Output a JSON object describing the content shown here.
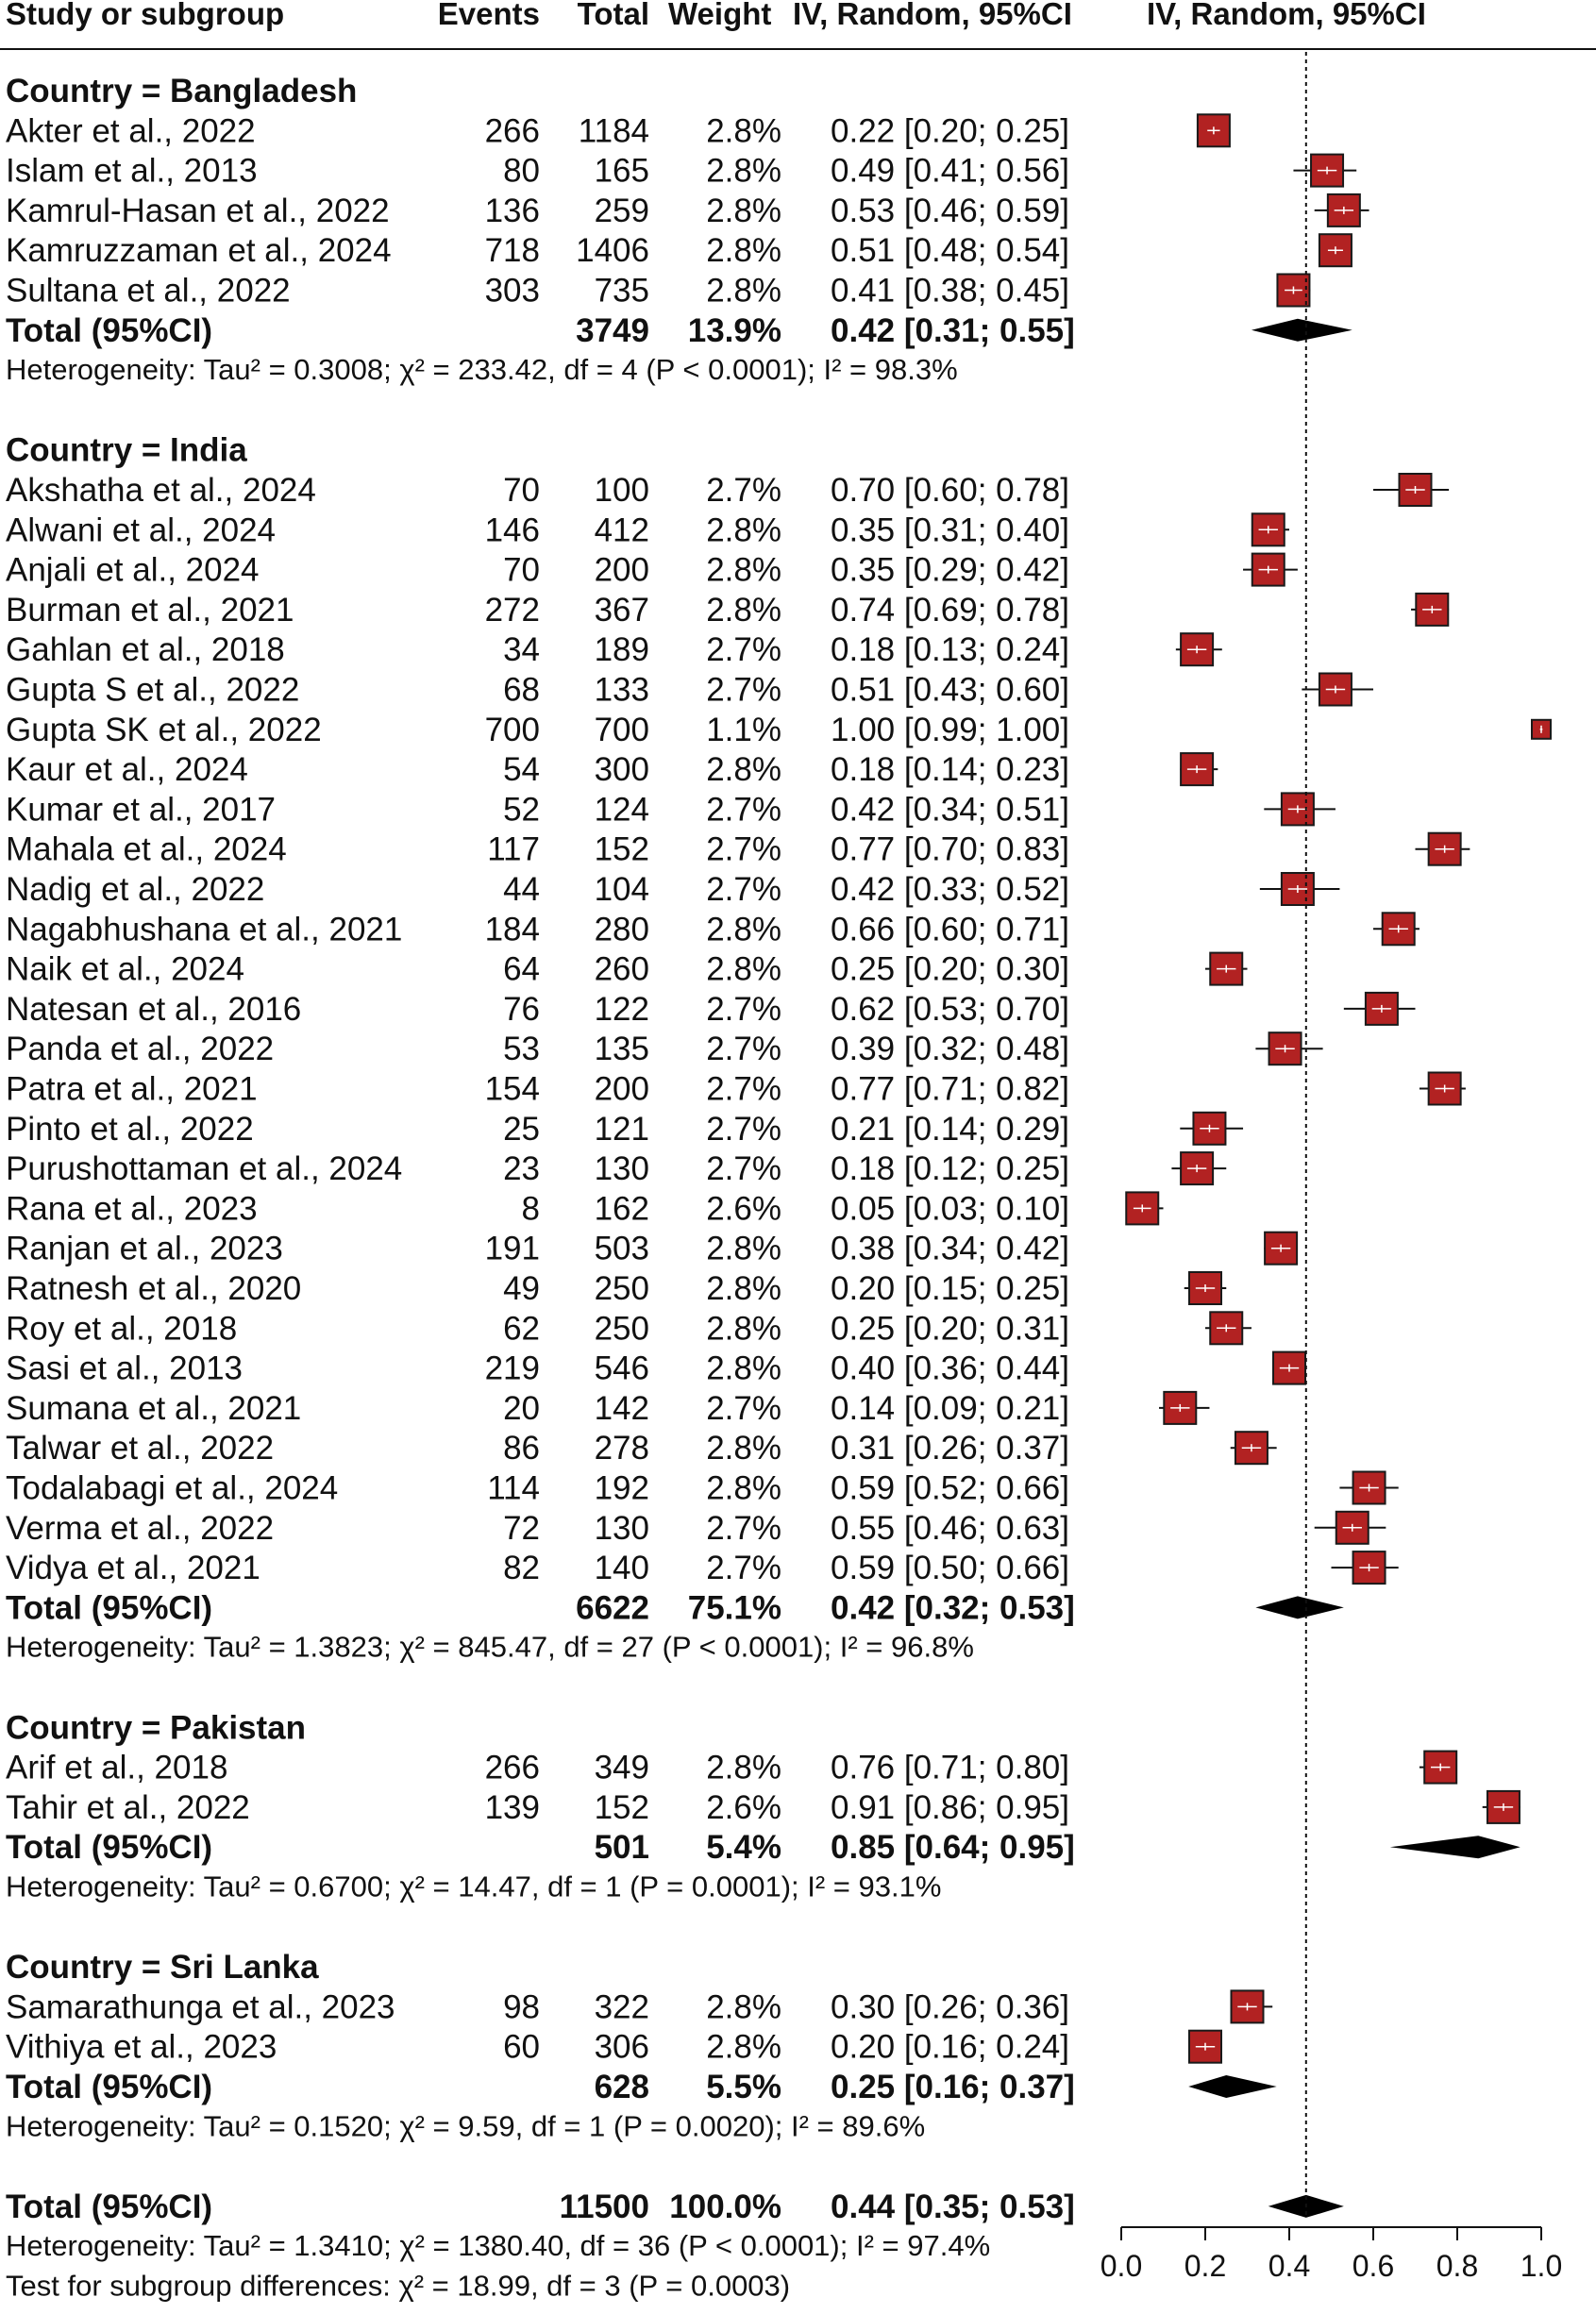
{
  "header": {
    "col_study": "Study or subgroup",
    "col_events": "Events",
    "col_total": "Total",
    "col_weight": "Weight",
    "col_ci": "IV, Random, 95%CI",
    "col_plot": "IV, Random, 95%CI"
  },
  "chart_data": {
    "type": "forest",
    "xlim": [
      0.0,
      1.0
    ],
    "x_ticks": [
      "0.0",
      "0.2",
      "0.4",
      "0.6",
      "0.8",
      "1.0"
    ],
    "reference_line": 0.44,
    "groups": [
      {
        "label": "Country = Bangladesh",
        "studies": [
          {
            "study": "Akter et al., 2022",
            "events": "266",
            "total": "1184",
            "weight": "2.8%",
            "ci": "0.22 [0.20; 0.25]",
            "est": 0.22,
            "lo": 0.2,
            "hi": 0.25
          },
          {
            "study": "Islam et al., 2013",
            "events": "80",
            "total": "165",
            "weight": "2.8%",
            "ci": "0.49 [0.41; 0.56]",
            "est": 0.49,
            "lo": 0.41,
            "hi": 0.56
          },
          {
            "study": "Kamrul-Hasan et al., 2022",
            "events": "136",
            "total": "259",
            "weight": "2.8%",
            "ci": "0.53 [0.46; 0.59]",
            "est": 0.53,
            "lo": 0.46,
            "hi": 0.59
          },
          {
            "study": "Kamruzzaman et al., 2024",
            "events": "718",
            "total": "1406",
            "weight": "2.8%",
            "ci": "0.51 [0.48; 0.54]",
            "est": 0.51,
            "lo": 0.48,
            "hi": 0.54
          },
          {
            "study": "Sultana et al., 2022",
            "events": "303",
            "total": "735",
            "weight": "2.8%",
            "ci": "0.41 [0.38; 0.45]",
            "est": 0.41,
            "lo": 0.38,
            "hi": 0.45
          }
        ],
        "total": {
          "label": "Total (95%CI)",
          "total": "3749",
          "weight": "13.9%",
          "ci": "0.42 [0.31; 0.55]",
          "est": 0.42,
          "lo": 0.31,
          "hi": 0.55
        },
        "heterogeneity": "Heterogeneity: Tau² = 0.3008; χ² = 233.42, df = 4 (P < 0.0001); I² = 98.3%"
      },
      {
        "label": "Country = India",
        "studies": [
          {
            "study": "Akshatha et al., 2024",
            "events": "70",
            "total": "100",
            "weight": "2.7%",
            "ci": "0.70 [0.60; 0.78]",
            "est": 0.7,
            "lo": 0.6,
            "hi": 0.78
          },
          {
            "study": "Alwani et al., 2024",
            "events": "146",
            "total": "412",
            "weight": "2.8%",
            "ci": "0.35 [0.31; 0.40]",
            "est": 0.35,
            "lo": 0.31,
            "hi": 0.4
          },
          {
            "study": "Anjali et al., 2024",
            "events": "70",
            "total": "200",
            "weight": "2.8%",
            "ci": "0.35 [0.29; 0.42]",
            "est": 0.35,
            "lo": 0.29,
            "hi": 0.42
          },
          {
            "study": "Burman et al., 2021",
            "events": "272",
            "total": "367",
            "weight": "2.8%",
            "ci": "0.74 [0.69; 0.78]",
            "est": 0.74,
            "lo": 0.69,
            "hi": 0.78
          },
          {
            "study": "Gahlan et al., 2018",
            "events": "34",
            "total": "189",
            "weight": "2.7%",
            "ci": "0.18 [0.13; 0.24]",
            "est": 0.18,
            "lo": 0.13,
            "hi": 0.24
          },
          {
            "study": "Gupta S et al., 2022",
            "events": "68",
            "total": "133",
            "weight": "2.7%",
            "ci": "0.51 [0.43; 0.60]",
            "est": 0.51,
            "lo": 0.43,
            "hi": 0.6
          },
          {
            "study": "Gupta SK et al., 2022",
            "events": "700",
            "total": "700",
            "weight": "1.1%",
            "ci": "1.00 [0.99; 1.00]",
            "est": 1.0,
            "lo": 0.99,
            "hi": 1.0
          },
          {
            "study": "Kaur et al., 2024",
            "events": "54",
            "total": "300",
            "weight": "2.8%",
            "ci": "0.18 [0.14; 0.23]",
            "est": 0.18,
            "lo": 0.14,
            "hi": 0.23
          },
          {
            "study": "Kumar et al., 2017",
            "events": "52",
            "total": "124",
            "weight": "2.7%",
            "ci": "0.42 [0.34; 0.51]",
            "est": 0.42,
            "lo": 0.34,
            "hi": 0.51
          },
          {
            "study": "Mahala et al., 2024",
            "events": "117",
            "total": "152",
            "weight": "2.7%",
            "ci": "0.77 [0.70; 0.83]",
            "est": 0.77,
            "lo": 0.7,
            "hi": 0.83
          },
          {
            "study": "Nadig et al., 2022",
            "events": "44",
            "total": "104",
            "weight": "2.7%",
            "ci": "0.42 [0.33; 0.52]",
            "est": 0.42,
            "lo": 0.33,
            "hi": 0.52
          },
          {
            "study": "Nagabhushana et al., 2021",
            "events": "184",
            "total": "280",
            "weight": "2.8%",
            "ci": "0.66 [0.60; 0.71]",
            "est": 0.66,
            "lo": 0.6,
            "hi": 0.71
          },
          {
            "study": "Naik et al., 2024",
            "events": "64",
            "total": "260",
            "weight": "2.8%",
            "ci": "0.25 [0.20; 0.30]",
            "est": 0.25,
            "lo": 0.2,
            "hi": 0.3
          },
          {
            "study": "Natesan et al., 2016",
            "events": "76",
            "total": "122",
            "weight": "2.7%",
            "ci": "0.62 [0.53; 0.70]",
            "est": 0.62,
            "lo": 0.53,
            "hi": 0.7
          },
          {
            "study": "Panda et al., 2022",
            "events": "53",
            "total": "135",
            "weight": "2.7%",
            "ci": "0.39 [0.32; 0.48]",
            "est": 0.39,
            "lo": 0.32,
            "hi": 0.48
          },
          {
            "study": "Patra et al., 2021",
            "events": "154",
            "total": "200",
            "weight": "2.7%",
            "ci": "0.77 [0.71; 0.82]",
            "est": 0.77,
            "lo": 0.71,
            "hi": 0.82
          },
          {
            "study": "Pinto et al., 2022",
            "events": "25",
            "total": "121",
            "weight": "2.7%",
            "ci": "0.21 [0.14; 0.29]",
            "est": 0.21,
            "lo": 0.14,
            "hi": 0.29
          },
          {
            "study": "Purushottaman et al., 2024",
            "events": "23",
            "total": "130",
            "weight": "2.7%",
            "ci": "0.18 [0.12; 0.25]",
            "est": 0.18,
            "lo": 0.12,
            "hi": 0.25
          },
          {
            "study": "Rana et al., 2023",
            "events": "8",
            "total": "162",
            "weight": "2.6%",
            "ci": "0.05 [0.03; 0.10]",
            "est": 0.05,
            "lo": 0.03,
            "hi": 0.1
          },
          {
            "study": "Ranjan et al., 2023",
            "events": "191",
            "total": "503",
            "weight": "2.8%",
            "ci": "0.38 [0.34; 0.42]",
            "est": 0.38,
            "lo": 0.34,
            "hi": 0.42
          },
          {
            "study": "Ratnesh et al., 2020",
            "events": "49",
            "total": "250",
            "weight": "2.8%",
            "ci": "0.20 [0.15; 0.25]",
            "est": 0.2,
            "lo": 0.15,
            "hi": 0.25
          },
          {
            "study": "Roy et al., 2018",
            "events": "62",
            "total": "250",
            "weight": "2.8%",
            "ci": "0.25 [0.20; 0.31]",
            "est": 0.25,
            "lo": 0.2,
            "hi": 0.31
          },
          {
            "study": "Sasi et al., 2013",
            "events": "219",
            "total": "546",
            "weight": "2.8%",
            "ci": "0.40 [0.36; 0.44]",
            "est": 0.4,
            "lo": 0.36,
            "hi": 0.44
          },
          {
            "study": "Sumana et al., 2021",
            "events": "20",
            "total": "142",
            "weight": "2.7%",
            "ci": "0.14 [0.09; 0.21]",
            "est": 0.14,
            "lo": 0.09,
            "hi": 0.21
          },
          {
            "study": "Talwar et al., 2022",
            "events": "86",
            "total": "278",
            "weight": "2.8%",
            "ci": "0.31 [0.26; 0.37]",
            "est": 0.31,
            "lo": 0.26,
            "hi": 0.37
          },
          {
            "study": "Todalabagi et al., 2024",
            "events": "114",
            "total": "192",
            "weight": "2.8%",
            "ci": "0.59 [0.52; 0.66]",
            "est": 0.59,
            "lo": 0.52,
            "hi": 0.66
          },
          {
            "study": "Verma et al., 2022",
            "events": "72",
            "total": "130",
            "weight": "2.7%",
            "ci": "0.55 [0.46; 0.63]",
            "est": 0.55,
            "lo": 0.46,
            "hi": 0.63
          },
          {
            "study": "Vidya et al., 2021",
            "events": "82",
            "total": "140",
            "weight": "2.7%",
            "ci": "0.59 [0.50; 0.66]",
            "est": 0.59,
            "lo": 0.5,
            "hi": 0.66
          }
        ],
        "total": {
          "label": "Total (95%CI)",
          "total": "6622",
          "weight": "75.1%",
          "ci": "0.42 [0.32; 0.53]",
          "est": 0.42,
          "lo": 0.32,
          "hi": 0.53
        },
        "heterogeneity": "Heterogeneity: Tau² = 1.3823; χ² = 845.47, df = 27 (P < 0.0001); I² = 96.8%"
      },
      {
        "label": "Country = Pakistan",
        "studies": [
          {
            "study": "Arif et al., 2018",
            "events": "266",
            "total": "349",
            "weight": "2.8%",
            "ci": "0.76 [0.71; 0.80]",
            "est": 0.76,
            "lo": 0.71,
            "hi": 0.8
          },
          {
            "study": "Tahir et al., 2022",
            "events": "139",
            "total": "152",
            "weight": "2.6%",
            "ci": "0.91 [0.86; 0.95]",
            "est": 0.91,
            "lo": 0.86,
            "hi": 0.95
          }
        ],
        "total": {
          "label": "Total (95%CI)",
          "total": "501",
          "weight": "5.4%",
          "ci": "0.85 [0.64; 0.95]",
          "est": 0.85,
          "lo": 0.64,
          "hi": 0.95
        },
        "heterogeneity": "Heterogeneity: Tau² = 0.6700; χ² = 14.47, df = 1 (P = 0.0001); I² = 93.1%"
      },
      {
        "label": "Country = Sri Lanka",
        "studies": [
          {
            "study": "Samarathunga et al., 2023",
            "events": "98",
            "total": "322",
            "weight": "2.8%",
            "ci": "0.30 [0.26; 0.36]",
            "est": 0.3,
            "lo": 0.26,
            "hi": 0.36
          },
          {
            "study": "Vithiya et al., 2023",
            "events": "60",
            "total": "306",
            "weight": "2.8%",
            "ci": "0.20 [0.16; 0.24]",
            "est": 0.2,
            "lo": 0.16,
            "hi": 0.24
          }
        ],
        "total": {
          "label": "Total (95%CI)",
          "total": "628",
          "weight": "5.5%",
          "ci": "0.25 [0.16; 0.37]",
          "est": 0.25,
          "lo": 0.16,
          "hi": 0.37
        },
        "heterogeneity": "Heterogeneity: Tau² = 0.1520; χ² = 9.59, df = 1 (P = 0.0020); I² = 89.6%"
      }
    ],
    "overall": {
      "label": "Total (95%CI)",
      "total": "11500",
      "weight": "100.0%",
      "ci": "0.44 [0.35; 0.53]",
      "est": 0.44,
      "lo": 0.35,
      "hi": 0.53
    },
    "overall_heterogeneity": "Heterogeneity: Tau² = 1.3410; χ² = 1380.40, df = 36 (P < 0.0001); I² = 97.4%",
    "subgroup_test": "Test for subgroup differences: χ² = 18.99, df = 3 (P = 0.0003)"
  },
  "colors": {
    "square_fill": "#b22222",
    "square_stroke": "#1a1a1a",
    "diamond": "#000000",
    "ci_tick": "#ffffff"
  }
}
